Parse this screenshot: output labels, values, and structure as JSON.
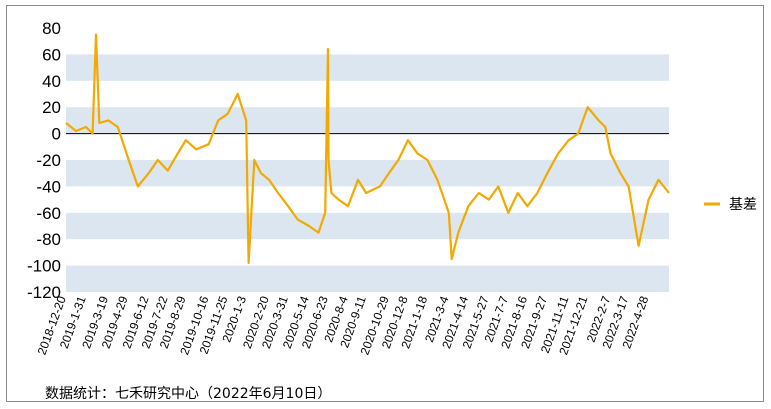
{
  "chart_data": {
    "type": "line",
    "title": "",
    "xlabel": "",
    "ylabel": "",
    "ylim": [
      -120,
      80
    ],
    "yticks": [
      80,
      60,
      40,
      20,
      0,
      -20,
      -40,
      -60,
      -80,
      -100,
      -120
    ],
    "banded_rows": true,
    "band_color": "#dce6f1",
    "line_color": "#f2a900",
    "legend_position": "right",
    "x_tick_labels": [
      "2018-12-20",
      "2019-1-31",
      "2019-3-19",
      "2019-4-29",
      "2019-6-12",
      "2019-7-22",
      "2019-8-29",
      "2019-10-16",
      "2019-11-25",
      "2020-1-3",
      "2020-2-20",
      "2020-3-31",
      "2020-5-14",
      "2020-6-23",
      "2020-8-4",
      "2020-9-11",
      "2020-10-29",
      "2020-12-8",
      "2021-1-18",
      "2021-3-4",
      "2021-4-14",
      "2021-5-27",
      "2021-7-7",
      "2021-8-16",
      "2021-9-27",
      "2021-11-11",
      "2021-12-21",
      "2022-2-7",
      "2022-3-17",
      "2022-4-28"
    ],
    "series": [
      {
        "name": "基差",
        "x": [
          "2018-12-20",
          "2019-1-10",
          "2019-1-31",
          "2019-2-14",
          "2019-2-21",
          "2019-2-28",
          "2019-3-19",
          "2019-4-8",
          "2019-4-29",
          "2019-5-20",
          "2019-6-12",
          "2019-7-1",
          "2019-7-22",
          "2019-8-12",
          "2019-8-29",
          "2019-9-20",
          "2019-10-16",
          "2019-11-5",
          "2019-11-25",
          "2019-12-16",
          "2020-1-3",
          "2020-1-8",
          "2020-1-20",
          "2020-2-3",
          "2020-2-20",
          "2020-3-10",
          "2020-3-31",
          "2020-4-20",
          "2020-5-14",
          "2020-6-3",
          "2020-6-17",
          "2020-6-23",
          "2020-6-24",
          "2020-6-30",
          "2020-7-15",
          "2020-8-4",
          "2020-8-25",
          "2020-9-11",
          "2020-10-10",
          "2020-10-29",
          "2020-11-18",
          "2020-12-8",
          "2020-12-28",
          "2021-1-18",
          "2021-2-8",
          "2021-3-4",
          "2021-3-10",
          "2021-3-24",
          "2021-4-14",
          "2021-5-6",
          "2021-5-27",
          "2021-6-16",
          "2021-7-7",
          "2021-7-27",
          "2021-8-16",
          "2021-9-6",
          "2021-9-27",
          "2021-10-20",
          "2021-11-11",
          "2021-12-1",
          "2021-12-21",
          "2022-1-13",
          "2022-1-27",
          "2022-2-7",
          "2022-2-28",
          "2022-3-17",
          "2022-4-7",
          "2022-4-28",
          "2022-5-19",
          "2022-6-10"
        ],
        "values": [
          8,
          2,
          5,
          0,
          75,
          8,
          10,
          5,
          -18,
          -40,
          -30,
          -20,
          -28,
          -15,
          -5,
          -12,
          -8,
          10,
          15,
          30,
          10,
          -98,
          -20,
          -30,
          -35,
          -45,
          -55,
          -65,
          -70,
          -75,
          -60,
          64,
          -20,
          -45,
          -50,
          -55,
          -35,
          -45,
          -40,
          -30,
          -20,
          -5,
          -15,
          -20,
          -35,
          -60,
          -95,
          -75,
          -55,
          -45,
          -50,
          -40,
          -60,
          -45,
          -55,
          -45,
          -30,
          -15,
          -5,
          0,
          20,
          10,
          5,
          -15,
          -30,
          -40,
          -85,
          -50,
          -35,
          -45
        ]
      }
    ]
  },
  "source_note": "数据统计：七禾研究中心（2022年6月10日）"
}
